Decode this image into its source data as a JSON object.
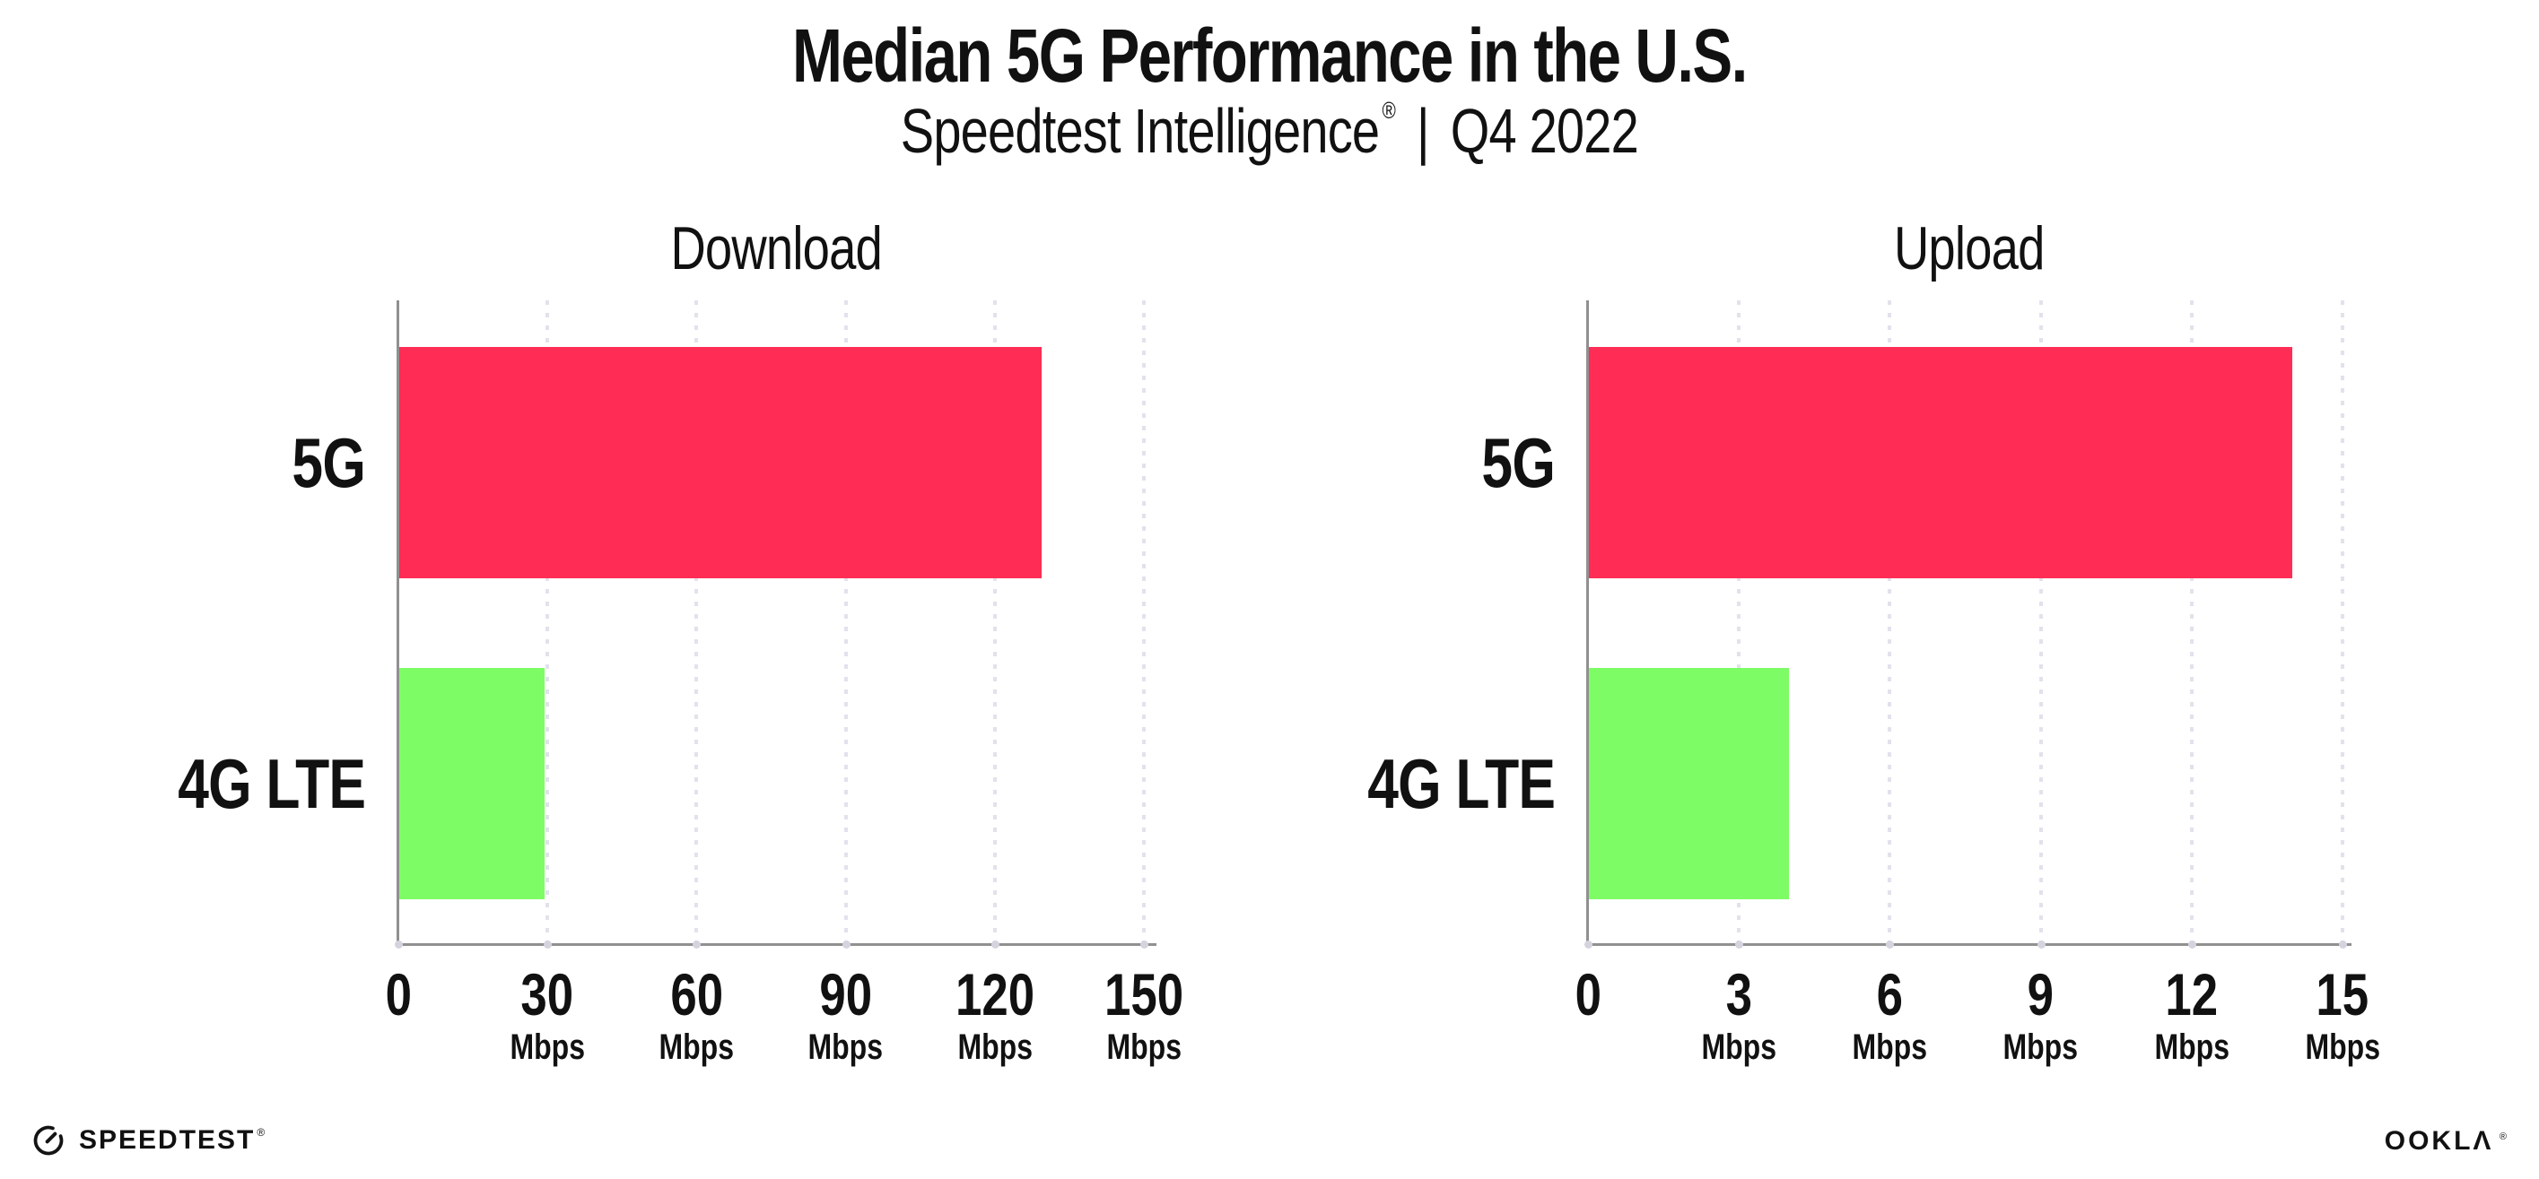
{
  "header": {
    "title": "Median 5G Performance in the U.S.",
    "subtitle_brand": "Speedtest Intelligence",
    "subtitle_reg": "®",
    "subtitle_separator": "|",
    "subtitle_period": "Q4 2022"
  },
  "colors": {
    "bar_5g": "#FF2D55",
    "bar_4g_lte": "#7EFC66",
    "axis": "#909090",
    "gridline": "#E2E2EC",
    "text": "#111111",
    "background": "#FFFFFF"
  },
  "chart_data": [
    {
      "type": "bar",
      "orientation": "horizontal",
      "title": "Download",
      "categories": [
        "5G",
        "4G LTE"
      ],
      "values": [
        129.5,
        29.5
      ],
      "unit": "Mbps",
      "xlim": [
        0,
        150
      ],
      "xticks": [
        0,
        30,
        60,
        90,
        120,
        150
      ],
      "tick_unit_label": "Mbps",
      "unit_shown_on_zero_tick": false,
      "grid": "vertical-dotted",
      "legend": "none",
      "bar_colors": [
        "#FF2D55",
        "#7EFC66"
      ]
    },
    {
      "type": "bar",
      "orientation": "horizontal",
      "title": "Upload",
      "categories": [
        "5G",
        "4G LTE"
      ],
      "values": [
        14,
        4
      ],
      "unit": "Mbps",
      "xlim": [
        0,
        15
      ],
      "xticks": [
        0,
        3,
        6,
        9,
        12,
        15
      ],
      "tick_unit_label": "Mbps",
      "unit_shown_on_zero_tick": false,
      "grid": "vertical-dotted",
      "legend": "none",
      "bar_colors": [
        "#FF2D55",
        "#7EFC66"
      ]
    }
  ],
  "footer": {
    "speedtest_label": "SPEEDTEST",
    "speedtest_reg": "®",
    "ookla_label": "OOKLΛ",
    "ookla_reg": "®"
  }
}
